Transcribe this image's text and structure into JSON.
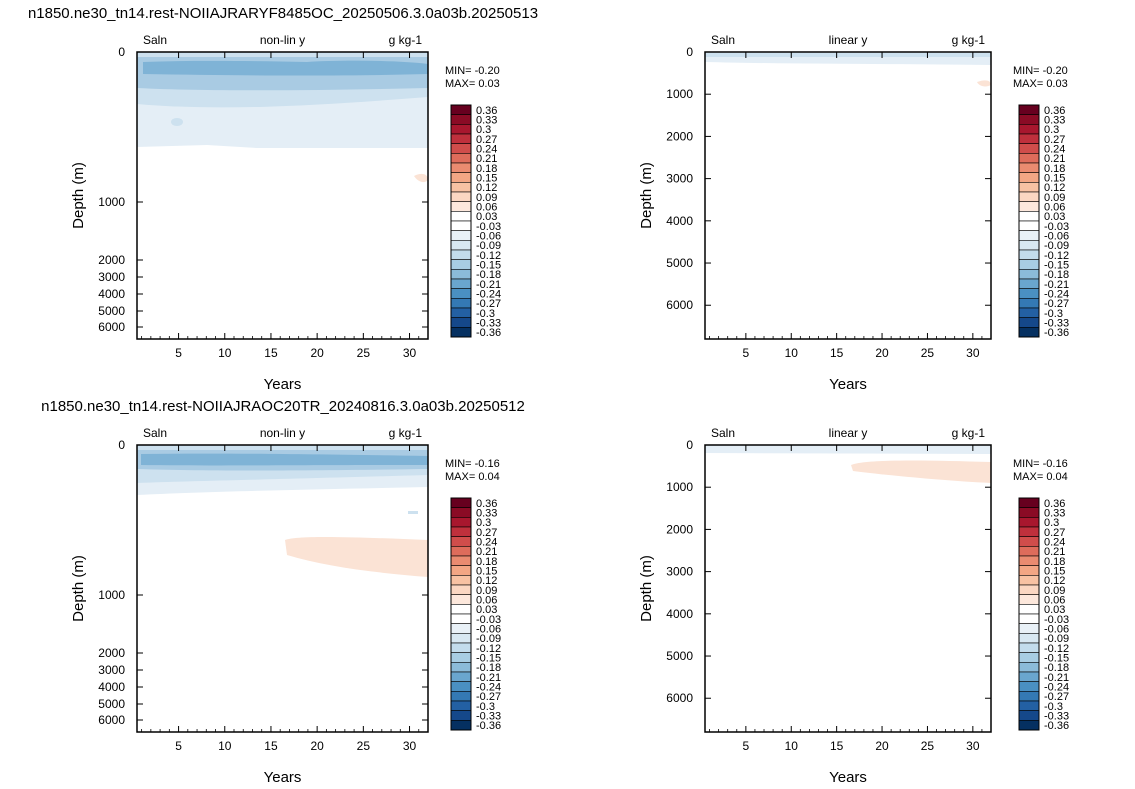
{
  "chart_data": [
    {
      "type": "heatmap",
      "title": "n1850.ne30_tn14.rest-NOIIAJRARYF8485OC_20250506.3.0a03b.20250513",
      "left_label": "Saln",
      "center_label": "non-lin y",
      "units": "g kg-1",
      "xlabel": "Years",
      "ylabel": "Depth (m)",
      "y_scale": "non-linear",
      "x_ticks": [
        "5",
        "10",
        "15",
        "20",
        "25",
        "30"
      ],
      "y_ticks": [
        "0",
        "1000",
        "2000",
        "3000",
        "4000",
        "5000",
        "6000"
      ],
      "xlim": [
        0.5,
        32
      ],
      "ylim": [
        6600,
        0
      ],
      "min_text": "MIN= -0.20",
      "max_text": "MAX=  0.03",
      "colorbar_labels": [
        "0.36",
        "0.33",
        "0.3",
        "0.27",
        "0.24",
        "0.21",
        "0.18",
        "0.15",
        "0.12",
        "0.09",
        "0.06",
        "0.03",
        "-0.03",
        "-0.06",
        "-0.09",
        "-0.12",
        "-0.15",
        "-0.18",
        "-0.21",
        "-0.24",
        "-0.27",
        "-0.3",
        "-0.33",
        "-0.36"
      ]
    },
    {
      "type": "heatmap",
      "title": "n1850.ne30_tn14.rest-NOIIAJRARYF8485OC_20250506.3.0a03b.20250513",
      "left_label": "Saln",
      "center_label": "linear y",
      "units": "g kg-1",
      "xlabel": "Years",
      "ylabel": "Depth (m)",
      "y_scale": "linear",
      "x_ticks": [
        "5",
        "10",
        "15",
        "20",
        "25",
        "30"
      ],
      "y_ticks": [
        "0",
        "1000",
        "2000",
        "3000",
        "4000",
        "5000",
        "6000"
      ],
      "xlim": [
        0.5,
        32
      ],
      "ylim": [
        6800,
        0
      ],
      "min_text": "MIN= -0.20",
      "max_text": "MAX=  0.03",
      "colorbar_labels": [
        "0.36",
        "0.33",
        "0.3",
        "0.27",
        "0.24",
        "0.21",
        "0.18",
        "0.15",
        "0.12",
        "0.09",
        "0.06",
        "0.03",
        "-0.03",
        "-0.06",
        "-0.09",
        "-0.12",
        "-0.15",
        "-0.18",
        "-0.21",
        "-0.24",
        "-0.27",
        "-0.3",
        "-0.33",
        "-0.36"
      ]
    },
    {
      "type": "heatmap",
      "title": "n1850.ne30_tn14.rest-NOIIAJRAOC20TR_20240816.3.0a03b.20250512",
      "left_label": "Saln",
      "center_label": "non-lin y",
      "units": "g kg-1",
      "xlabel": "Years",
      "ylabel": "Depth (m)",
      "y_scale": "non-linear",
      "x_ticks": [
        "5",
        "10",
        "15",
        "20",
        "25",
        "30"
      ],
      "y_ticks": [
        "0",
        "1000",
        "2000",
        "3000",
        "4000",
        "5000",
        "6000"
      ],
      "xlim": [
        0.5,
        32
      ],
      "ylim": [
        6600,
        0
      ],
      "min_text": "MIN= -0.16",
      "max_text": "MAX=  0.04",
      "colorbar_labels": [
        "0.36",
        "0.33",
        "0.3",
        "0.27",
        "0.24",
        "0.21",
        "0.18",
        "0.15",
        "0.12",
        "0.09",
        "0.06",
        "0.03",
        "-0.03",
        "-0.06",
        "-0.09",
        "-0.12",
        "-0.15",
        "-0.18",
        "-0.21",
        "-0.24",
        "-0.27",
        "-0.3",
        "-0.33",
        "-0.36"
      ]
    },
    {
      "type": "heatmap",
      "title": "n1850.ne30_tn14.rest-NOIIAJRAOC20TR_20240816.3.0a03b.20250512",
      "left_label": "Saln",
      "center_label": "linear y",
      "units": "g kg-1",
      "xlabel": "Years",
      "ylabel": "Depth (m)",
      "y_scale": "linear",
      "x_ticks": [
        "5",
        "10",
        "15",
        "20",
        "25",
        "30"
      ],
      "y_ticks": [
        "0",
        "1000",
        "2000",
        "3000",
        "4000",
        "5000",
        "6000"
      ],
      "xlim": [
        0.5,
        32
      ],
      "ylim": [
        6800,
        0
      ],
      "min_text": "MIN= -0.16",
      "max_text": "MAX=  0.04",
      "colorbar_labels": [
        "0.36",
        "0.33",
        "0.3",
        "0.27",
        "0.24",
        "0.21",
        "0.18",
        "0.15",
        "0.12",
        "0.09",
        "0.06",
        "0.03",
        "-0.03",
        "-0.06",
        "-0.09",
        "-0.12",
        "-0.15",
        "-0.18",
        "-0.21",
        "-0.24",
        "-0.27",
        "-0.3",
        "-0.33",
        "-0.36"
      ]
    }
  ],
  "colors": {
    "colorbar": [
      "#67001f",
      "#8a0b25",
      "#a8172e",
      "#bf303c",
      "#d04d4b",
      "#de6c5b",
      "#ea8b70",
      "#f3a684",
      "#f8c2a3",
      "#fbd7c2",
      "#fde8dc",
      "#ffffff",
      "#ffffff",
      "#e9f1f7",
      "#d8e8f2",
      "#c3dcec",
      "#a8cde3",
      "#8bbbd9",
      "#6aa6ce",
      "#4a90c2",
      "#3479b4",
      "#2360a3",
      "#15488a",
      "#053061"
    ],
    "blue_strong": "#7fb3d6",
    "blue_mid": "#a9cbe3",
    "blue_light": "#cde1ef",
    "blue_faint": "#e4eef6",
    "salmon": "#fbe3d5"
  }
}
